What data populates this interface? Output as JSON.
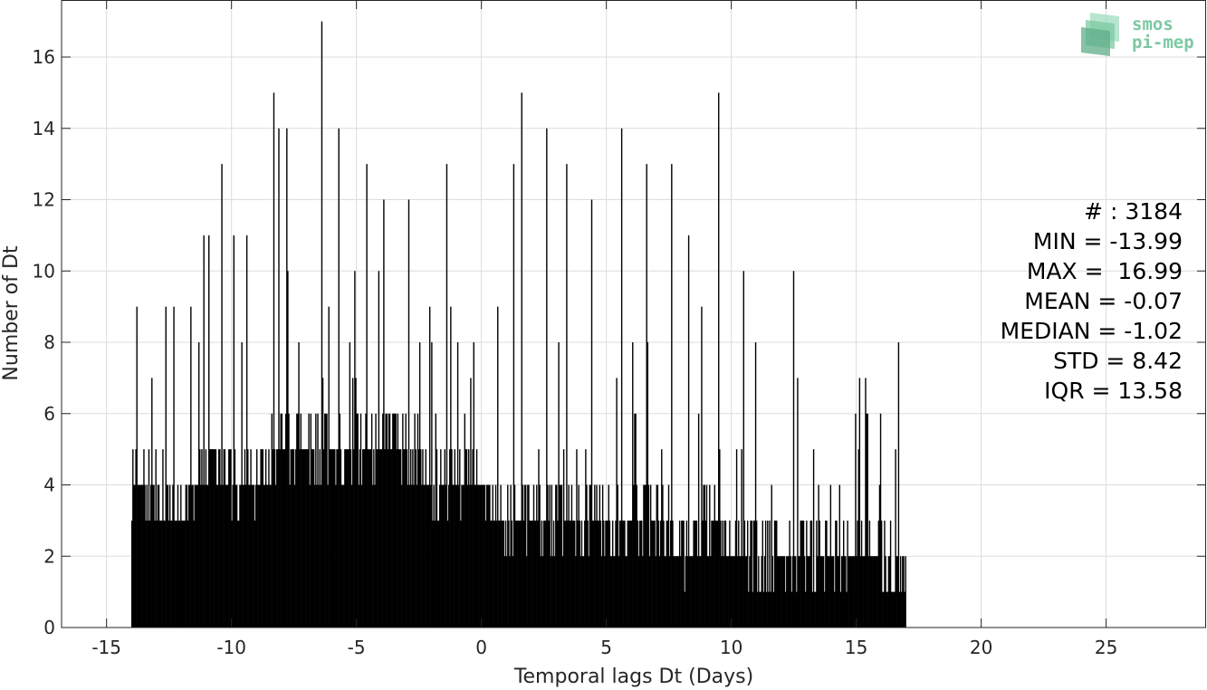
{
  "chart_data": {
    "type": "bar",
    "title": "",
    "xlabel": "Temporal lags Dt (Days)",
    "ylabel": "Number of Dt",
    "xlim": [
      -16.8,
      29
    ],
    "ylim": [
      0,
      17.6
    ],
    "grid": true,
    "legend": "none",
    "bar_color": "#000000",
    "x_ticks": [
      -15,
      -10,
      -5,
      0,
      5,
      10,
      15,
      20,
      25
    ],
    "x_tick_labels": [
      "-15",
      "-10",
      "-5",
      "0",
      "5",
      "10",
      "15",
      "20",
      "25"
    ],
    "y_ticks": [
      0,
      2,
      4,
      6,
      8,
      10,
      12,
      14,
      16
    ],
    "y_tick_labels": [
      "0",
      "2",
      "4",
      "6",
      "8",
      "10",
      "12",
      "14",
      "16"
    ],
    "bin_width_days": 0.04,
    "data_range": [
      -13.99,
      16.99
    ],
    "notable_peaks": [
      {
        "x": -6.4,
        "y": 17
      },
      {
        "x": -8.3,
        "y": 15
      },
      {
        "x": 1.6,
        "y": 15
      },
      {
        "x": 9.5,
        "y": 15
      },
      {
        "x": -8.1,
        "y": 14
      },
      {
        "x": -7.8,
        "y": 14
      },
      {
        "x": -5.7,
        "y": 14
      },
      {
        "x": 2.6,
        "y": 14
      },
      {
        "x": 5.6,
        "y": 14
      },
      {
        "x": -10.4,
        "y": 13
      },
      {
        "x": -4.6,
        "y": 13
      },
      {
        "x": -1.4,
        "y": 13
      },
      {
        "x": 1.3,
        "y": 13
      },
      {
        "x": 3.4,
        "y": 13
      },
      {
        "x": 6.6,
        "y": 13
      },
      {
        "x": 7.6,
        "y": 13
      },
      {
        "x": -3.9,
        "y": 12
      },
      {
        "x": -2.9,
        "y": 12
      },
      {
        "x": 4.4,
        "y": 12
      },
      {
        "x": -11.1,
        "y": 11
      },
      {
        "x": -10.9,
        "y": 11
      },
      {
        "x": -9.9,
        "y": 11
      },
      {
        "x": -9.4,
        "y": 11
      },
      {
        "x": 8.3,
        "y": 11
      },
      {
        "x": 10.5,
        "y": 10
      },
      {
        "x": 12.5,
        "y": 10
      },
      {
        "x": 16.7,
        "y": 8
      },
      {
        "x": -13.8,
        "y": 9
      }
    ],
    "envelope": [
      {
        "x": -13.9,
        "y": 4
      },
      {
        "x": -13.0,
        "y": 4
      },
      {
        "x": -12.0,
        "y": 3
      },
      {
        "x": -11.0,
        "y": 5
      },
      {
        "x": -10.0,
        "y": 4
      },
      {
        "x": -9.0,
        "y": 4
      },
      {
        "x": -8.0,
        "y": 5
      },
      {
        "x": -7.0,
        "y": 5
      },
      {
        "x": -6.0,
        "y": 5
      },
      {
        "x": -5.0,
        "y": 5
      },
      {
        "x": -4.0,
        "y": 5
      },
      {
        "x": -3.0,
        "y": 5
      },
      {
        "x": -2.0,
        "y": 4
      },
      {
        "x": -1.0,
        "y": 4
      },
      {
        "x": 0.0,
        "y": 4
      },
      {
        "x": 1.0,
        "y": 3
      },
      {
        "x": 2.0,
        "y": 3
      },
      {
        "x": 3.0,
        "y": 3
      },
      {
        "x": 4.0,
        "y": 3
      },
      {
        "x": 5.0,
        "y": 3
      },
      {
        "x": 6.0,
        "y": 3
      },
      {
        "x": 7.0,
        "y": 3
      },
      {
        "x": 8.0,
        "y": 2
      },
      {
        "x": 9.0,
        "y": 3
      },
      {
        "x": 10.0,
        "y": 2
      },
      {
        "x": 11.0,
        "y": 2
      },
      {
        "x": 12.0,
        "y": 2
      },
      {
        "x": 13.0,
        "y": 2
      },
      {
        "x": 14.0,
        "y": 2
      },
      {
        "x": 15.0,
        "y": 2
      },
      {
        "x": 16.0,
        "y": 2
      },
      {
        "x": 17.0,
        "y": 1
      }
    ],
    "stats": {
      "count": "# : 3184",
      "min": "MIN = -13.99",
      "max": "MAX =  16.99",
      "mean": "MEAN = -0.07",
      "median": "MEDIAN = -1.02",
      "std": "STD = 8.42",
      "iqr": "IQR = 13.58"
    }
  },
  "logo": {
    "line1": "smos",
    "line2": "pi-mep",
    "color": "#7cc8a2"
  }
}
